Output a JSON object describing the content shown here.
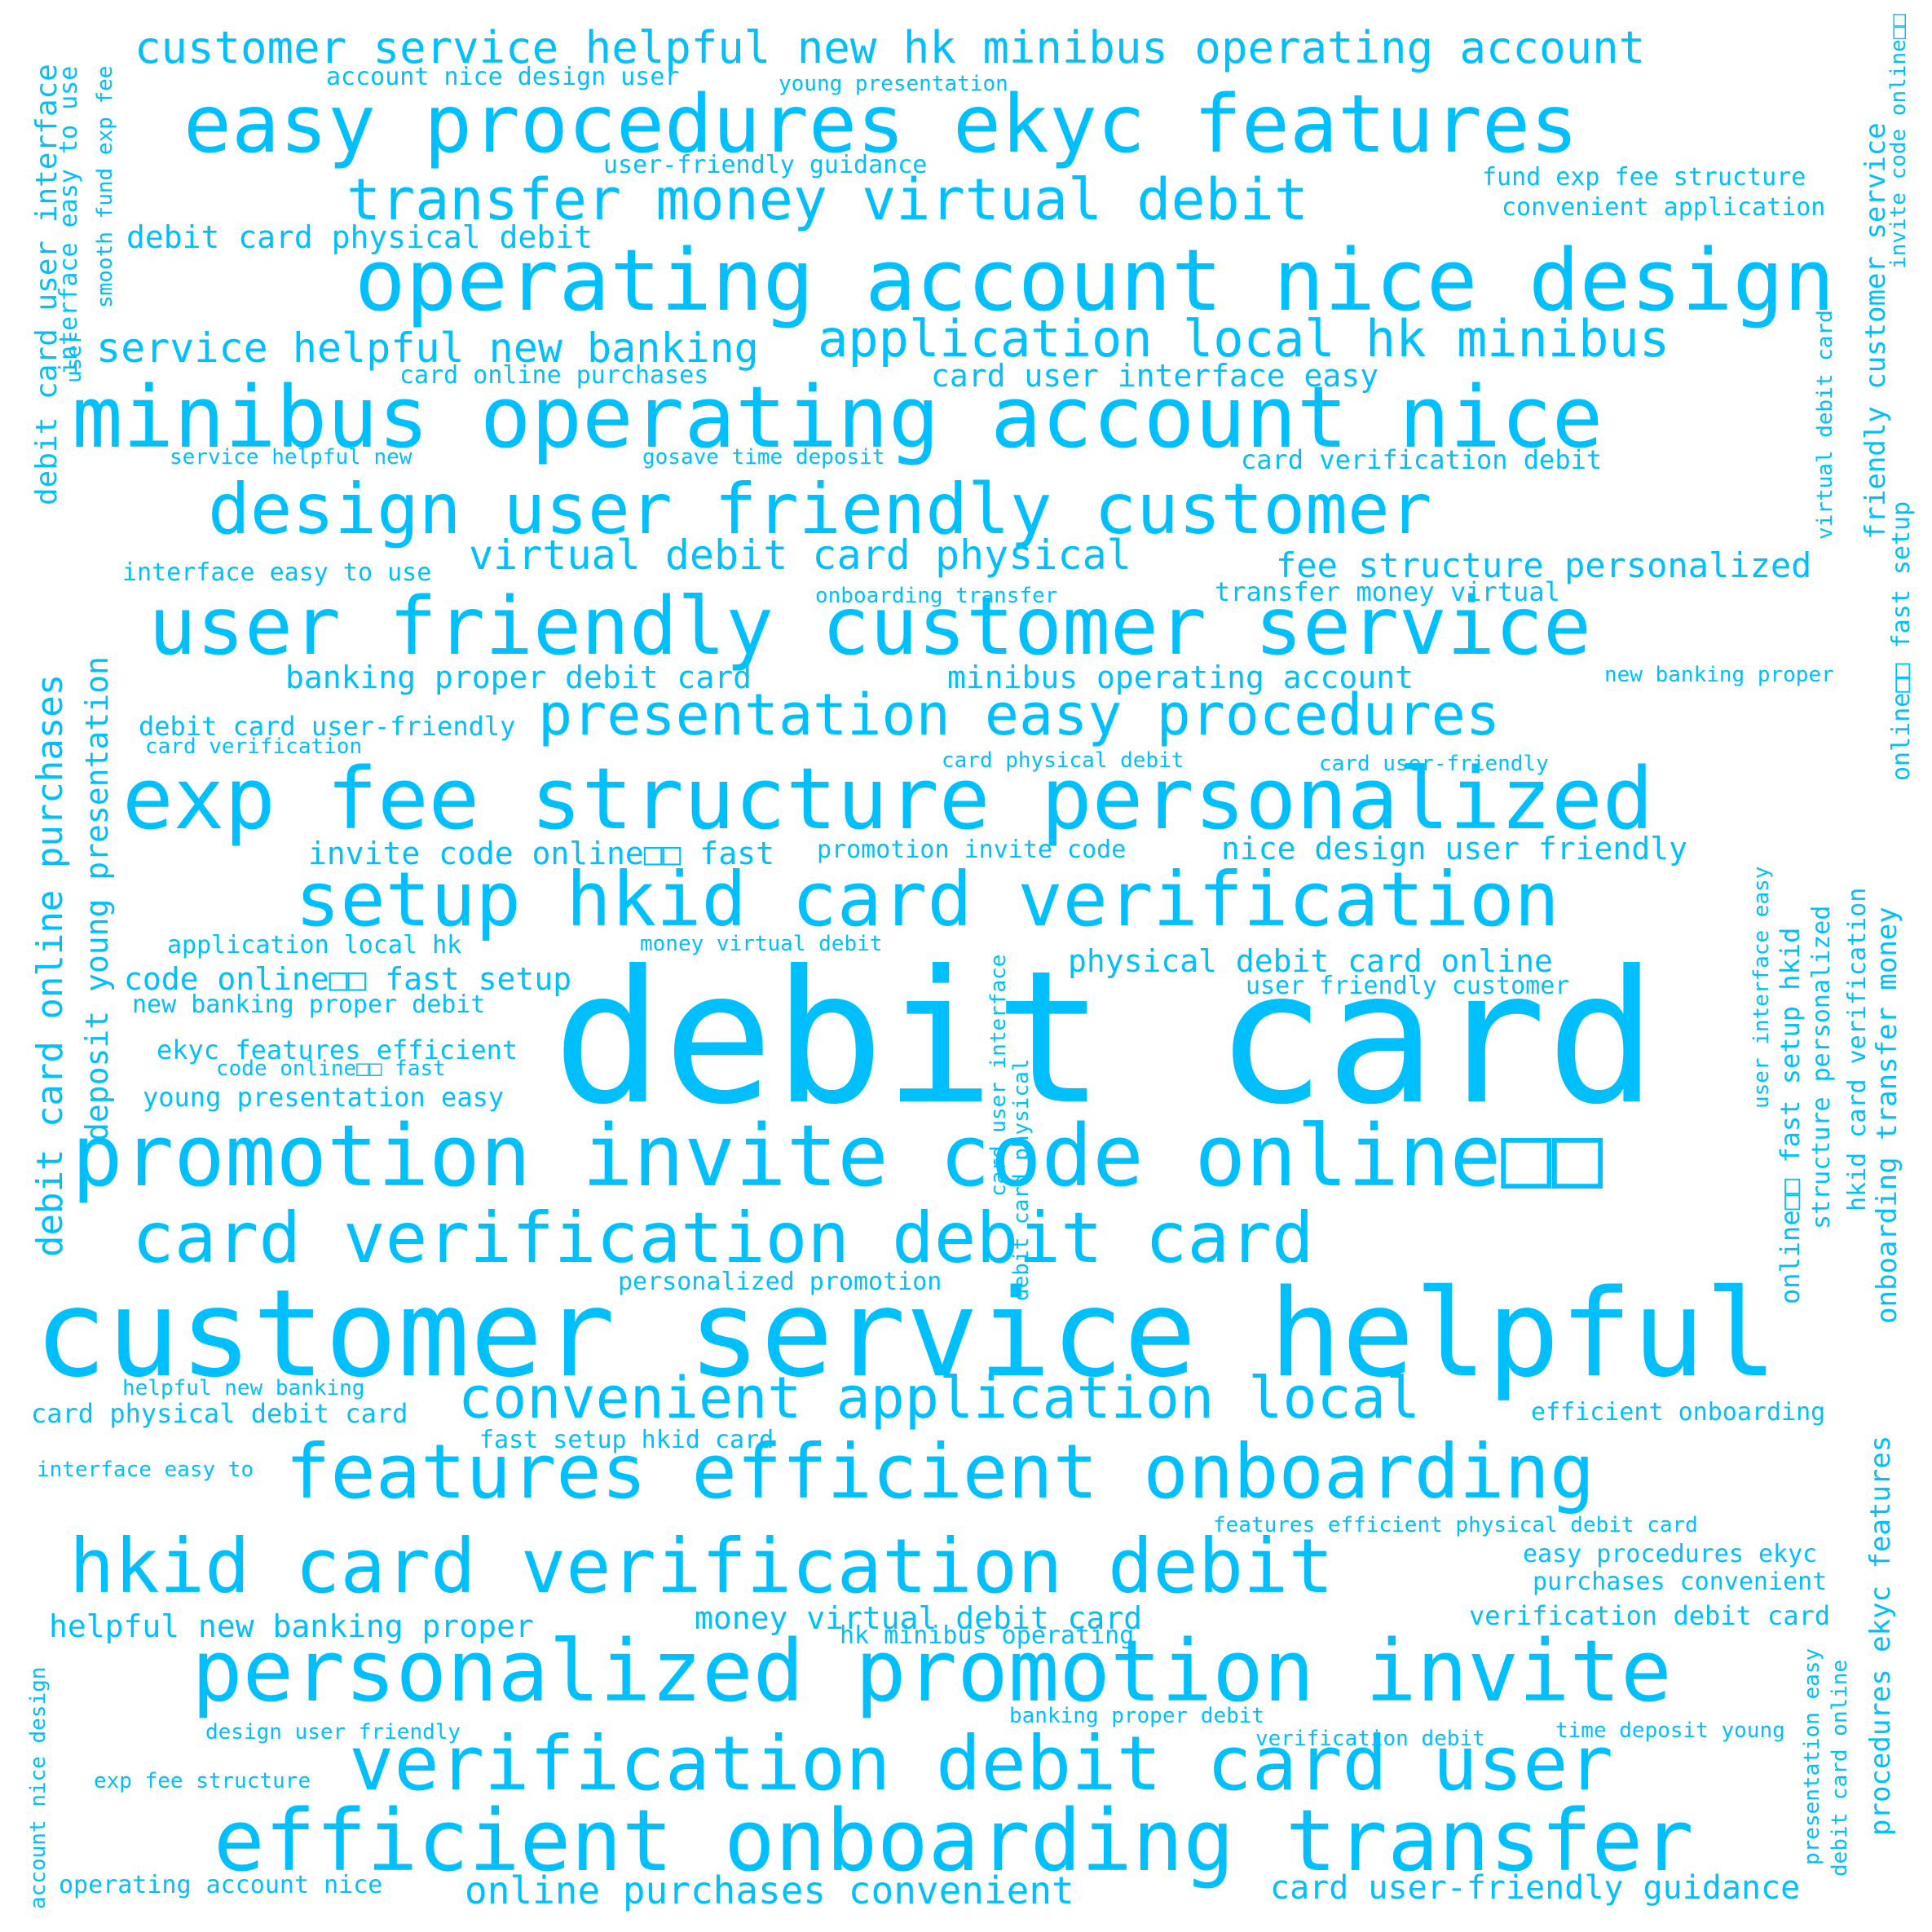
{
  "color": "#00BFFF",
  "words": [
    "customer service helpful new hk minibus operating account",
    "easy procedures ekyc features",
    "transfer money virtual debit",
    "operating account nice design",
    "minibus operating account nice",
    "design user friendly customer",
    "user friendly customer service",
    "presentation easy procedures",
    "exp fee structure personalized",
    "setup hkid card verification",
    "debit card",
    "promotion invite code online□□",
    "card verification debit card",
    "customer service helpful",
    "convenient application local",
    "features efficient onboarding",
    "hkid card verification debit",
    "personalized promotion invite",
    "verification debit card user",
    "efficient onboarding transfer",
    "application local hk minibus",
    "service helpful new banking",
    "virtual debit card physical",
    "fee structure personalized",
    "debit card physical debit",
    "fund exp fee structure",
    "convenient application",
    "account nice design user",
    "young presentation",
    "user-friendly guidance",
    "card online purchases",
    "card user interface easy",
    "service helpful new",
    "gosave time deposit",
    "card verification debit",
    "interface easy to use",
    "onboarding transfer",
    "transfer money virtual",
    "banking proper debit card",
    "minibus operating account",
    "new banking proper",
    "debit card user-friendly",
    "card verification",
    "card physical debit",
    "card user-friendly",
    "invite code online□□ fast",
    "promotion invite code",
    "nice design user friendly",
    "application local hk",
    "money virtual debit",
    "physical debit card online",
    "code online□□ fast setup",
    "user friendly customer",
    "new banking proper debit",
    "ekyc features efficient",
    "code online□□ fast",
    "young presentation easy",
    "personalized promotion",
    "helpful new banking",
    "card physical debit card",
    "efficient onboarding",
    "fast setup hkid card",
    "interface easy to",
    "features efficient physical debit card",
    "easy procedures ekyc",
    "purchases convenient",
    "helpful new banking proper",
    "money virtual debit card",
    "verification debit card",
    "hk minibus operating",
    "banking proper debit",
    "design user friendly",
    "time deposit young",
    "verification debit",
    "exp fee structure",
    "operating account nice",
    "online purchases convenient",
    "card user-friendly guidance",
    "debit card user interface",
    "interface easy to use",
    "smooth fund exp fee",
    "user",
    "debit card online purchases",
    "deposit young presentation",
    "account nice design",
    "card user interface",
    "debit card physical",
    "online□□ fast setup hkid",
    "structure personalized",
    "user interface easy",
    "hkid card verification",
    "onboarding transfer money",
    "procedures ekyc features",
    "presentation easy",
    "debit card online",
    "virtual debit card",
    "friendly customer service",
    "online□□ fast setup",
    "invite code online□□"
  ]
}
